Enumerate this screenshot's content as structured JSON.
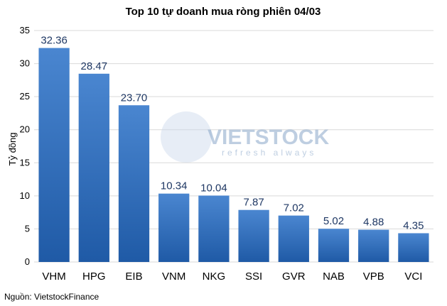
{
  "chart_data": {
    "type": "bar",
    "title": "Top 10 tự doanh mua ròng phiên 04/03",
    "ylabel": "Tỷ đồng",
    "xlabel": "",
    "categories": [
      "VHM",
      "HPG",
      "EIB",
      "VNM",
      "NKG",
      "SSI",
      "GVR",
      "NAB",
      "VPB",
      "VCI"
    ],
    "values": [
      32.36,
      28.47,
      23.7,
      10.34,
      10.04,
      7.87,
      7.02,
      5.02,
      4.88,
      4.35
    ],
    "value_labels": [
      "32.36",
      "28.47",
      "23.70",
      "10.34",
      "10.04",
      "7.87",
      "7.02",
      "5.02",
      "4.88",
      "4.35"
    ],
    "ylim": [
      0,
      35
    ],
    "yticks": [
      0,
      5,
      10,
      15,
      20,
      25,
      30,
      35
    ],
    "grid": true,
    "bar_color_top": "#4a86d0",
    "bar_color_bottom": "#1f5aa6"
  },
  "watermark": {
    "text": "VIETSTOCK",
    "subtext": "refresh always",
    "icon": "vietstock-logo-icon"
  },
  "source": "Nguồn: VietstockFinance"
}
